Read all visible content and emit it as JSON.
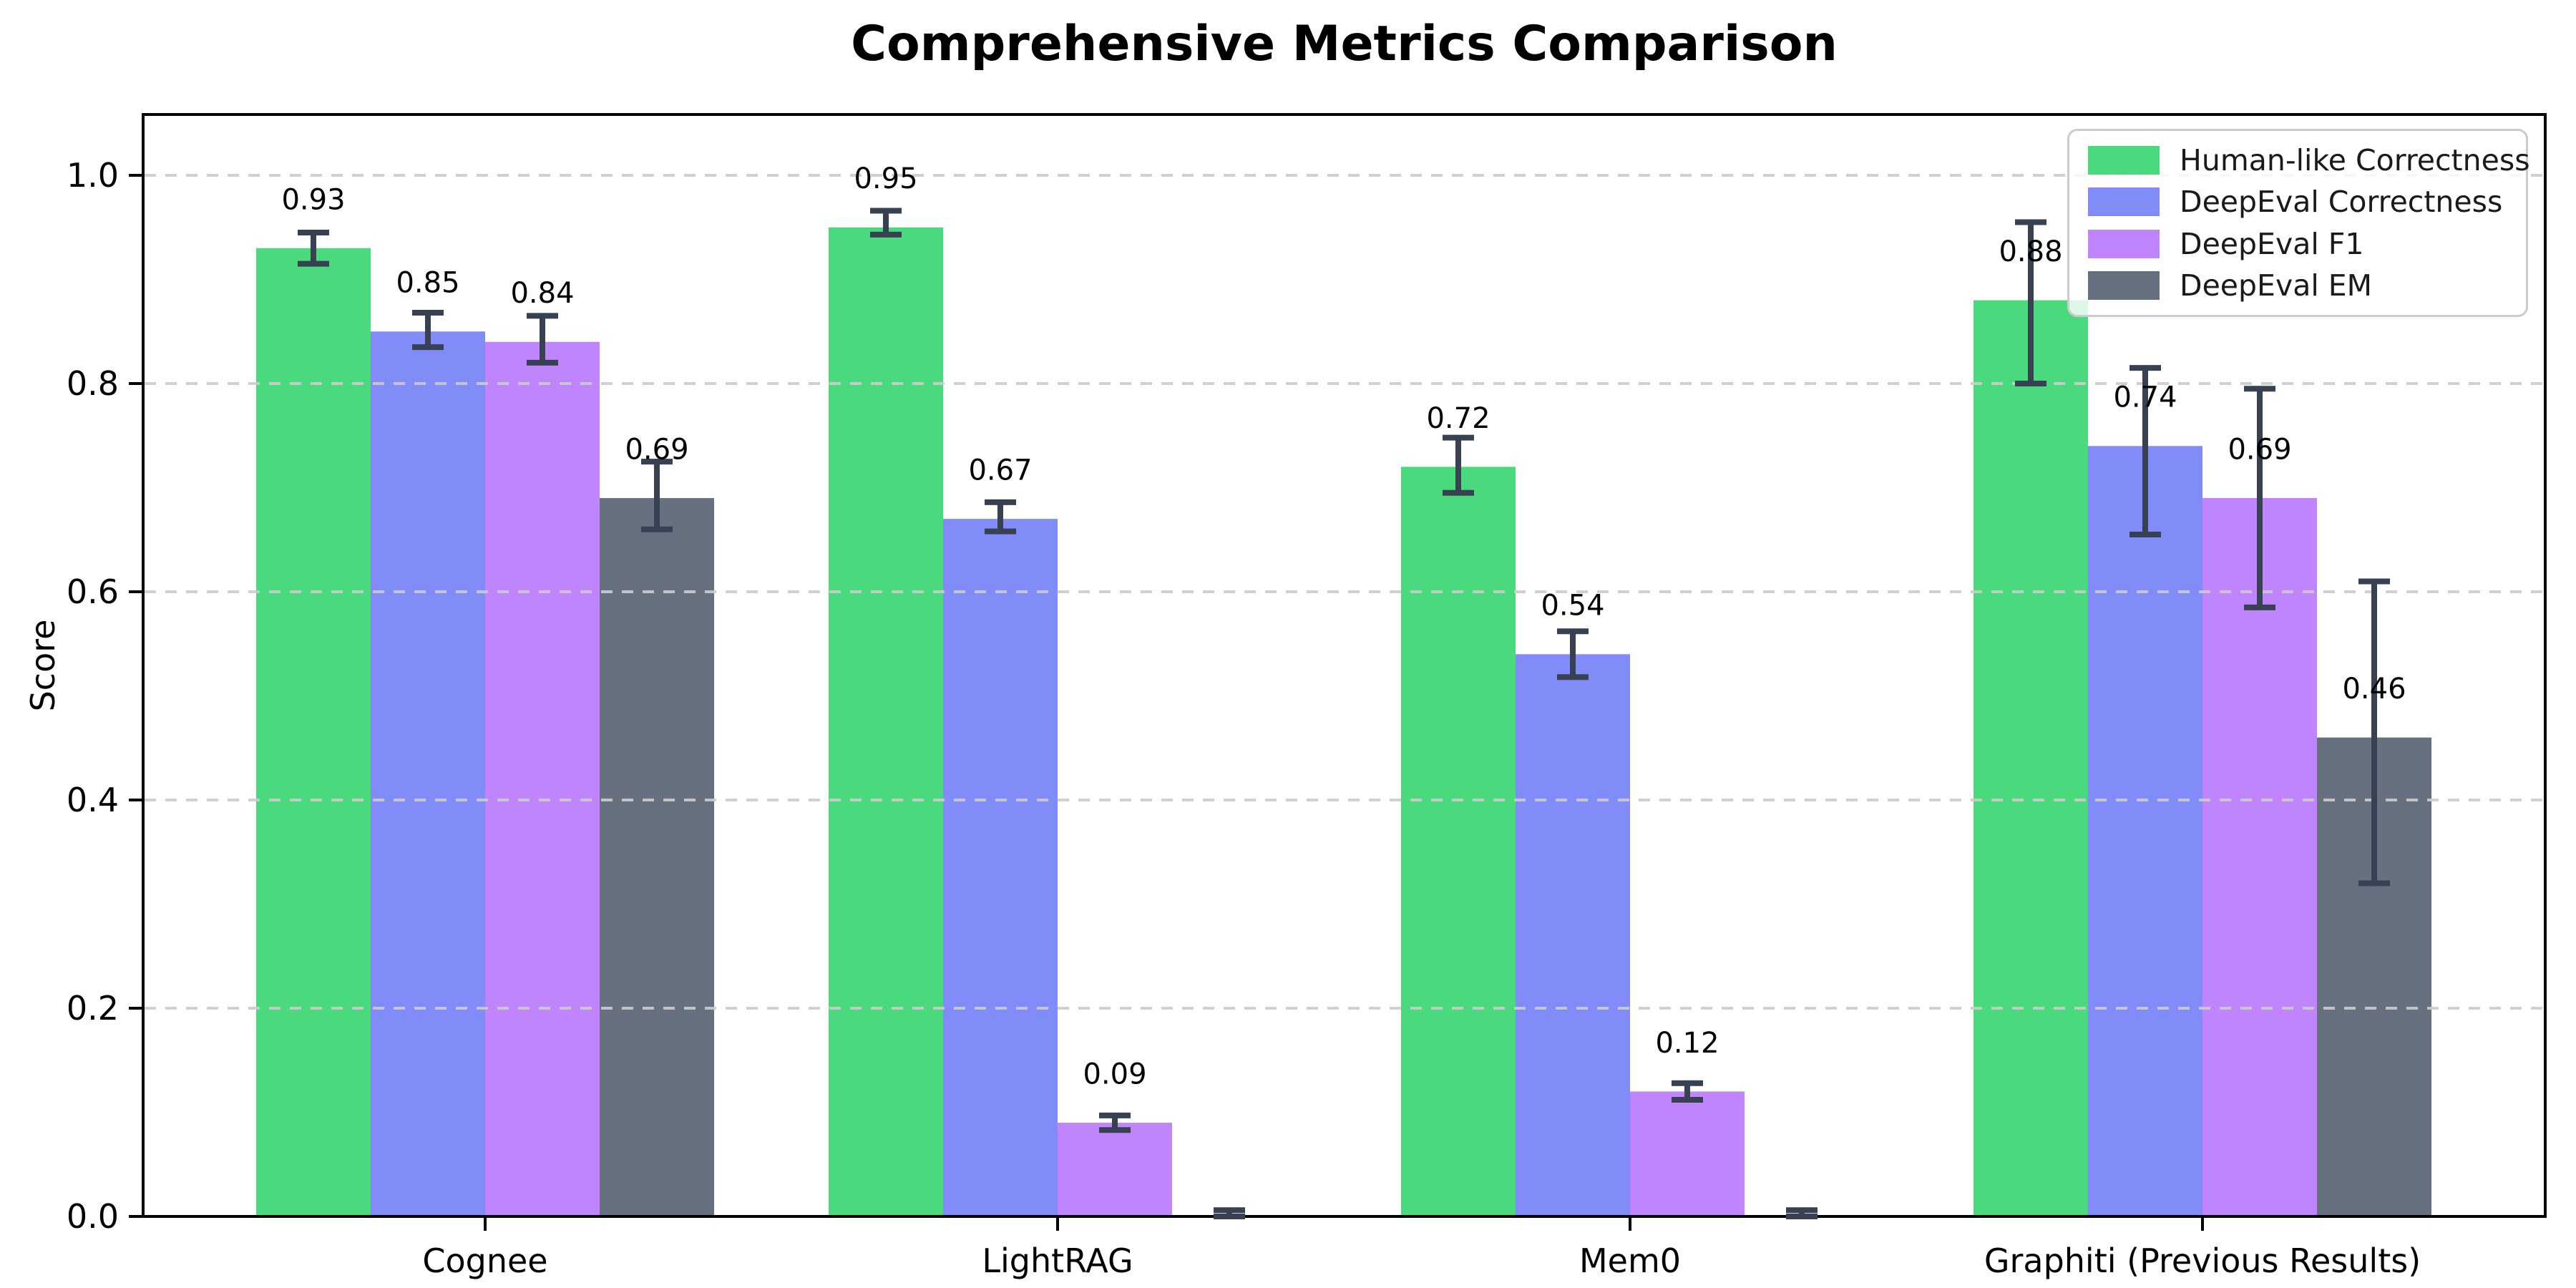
{
  "chart_data": {
    "type": "bar",
    "title": "Comprehensive Metrics Comparison",
    "ylabel": "Score",
    "xlabel": "",
    "categories": [
      "Cognee",
      "LightRAG",
      "Mem0",
      "Graphiti (Previous Results)"
    ],
    "yticks": [
      0.0,
      0.2,
      0.4,
      0.6,
      0.8,
      1.0
    ],
    "ytick_labels": [
      "0.0",
      "0.2",
      "0.4",
      "0.6",
      "0.8",
      "1.0"
    ],
    "ylim": [
      0,
      1.058
    ],
    "grid": "horizontal-dashed",
    "legend_position": "upper right",
    "error_bar_color": "#374151",
    "grid_color": "#cccccc",
    "series": [
      {
        "name": "Human-like Correctness",
        "color": "#4bd97d",
        "values": [
          0.93,
          0.95,
          0.72,
          0.88
        ],
        "err_low": [
          0.915,
          0.943,
          0.695,
          0.8
        ],
        "err_high": [
          0.945,
          0.966,
          0.748,
          0.955
        ],
        "value_labels": [
          "0.93",
          "0.95",
          "0.72",
          "0.88"
        ]
      },
      {
        "name": "DeepEval Correctness",
        "color": "#818cf8",
        "values": [
          0.85,
          0.67,
          0.54,
          0.74
        ],
        "err_low": [
          0.835,
          0.658,
          0.518,
          0.655
        ],
        "err_high": [
          0.868,
          0.686,
          0.562,
          0.815
        ],
        "value_labels": [
          "0.85",
          "0.67",
          "0.54",
          "0.74"
        ]
      },
      {
        "name": "DeepEval F1",
        "color": "#c084fc",
        "values": [
          0.84,
          0.09,
          0.12,
          0.69
        ],
        "err_low": [
          0.82,
          0.083,
          0.112,
          0.585
        ],
        "err_high": [
          0.865,
          0.097,
          0.128,
          0.795
        ],
        "value_labels": [
          "0.84",
          "0.09",
          "0.12",
          "0.69"
        ]
      },
      {
        "name": "DeepEval EM",
        "color": "#66707f",
        "values": [
          0.69,
          0.0,
          0.0,
          0.46
        ],
        "err_low": [
          0.66,
          0.0,
          0.0,
          0.32
        ],
        "err_high": [
          0.725,
          0.006,
          0.006,
          0.61
        ],
        "value_labels": [
          "0.69",
          "",
          "",
          "0.46"
        ]
      }
    ]
  }
}
